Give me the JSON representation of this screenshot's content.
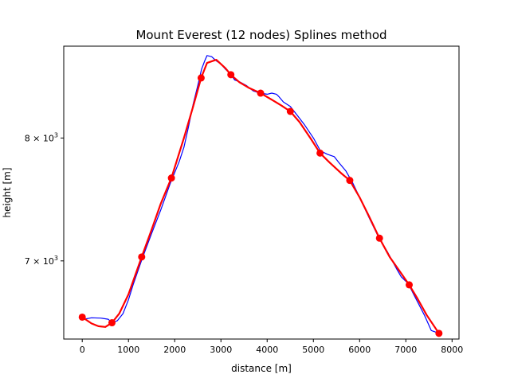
{
  "chart_data": {
    "type": "line",
    "title": "Mount Everest (12 nodes) Splines method",
    "xlabel": "distance [m]",
    "ylabel": "height [m]",
    "yscale": "log",
    "xlim": [
      -400,
      8150
    ],
    "ylim": [
      6430,
      8840
    ],
    "grid": false,
    "legend": "none",
    "x_ticks": [
      {
        "value": 0,
        "label": "0"
      },
      {
        "value": 1000,
        "label": "1000"
      },
      {
        "value": 2000,
        "label": "2000"
      },
      {
        "value": 3000,
        "label": "3000"
      },
      {
        "value": 4000,
        "label": "4000"
      },
      {
        "value": 5000,
        "label": "5000"
      },
      {
        "value": 6000,
        "label": "6000"
      },
      {
        "value": 7000,
        "label": "7000"
      },
      {
        "value": 8000,
        "label": "8000"
      }
    ],
    "y_ticks": [
      {
        "value": 7000,
        "base": "7 × 10",
        "exp": "3"
      },
      {
        "value": 8000,
        "base": "8 × 10",
        "exp": "3"
      }
    ],
    "series": [
      {
        "color": "#0000ff",
        "style": "thin line",
        "x": [
          0,
          200,
          400,
          560,
          650,
          760,
          880,
          1000,
          1100,
          1300,
          1500,
          1700,
          1900,
          2100,
          2200,
          2300,
          2400,
          2500,
          2580,
          2650,
          2700,
          2800,
          2900,
          3000,
          3100,
          3200,
          3300,
          3400,
          3550,
          3700,
          3850,
          4000,
          4100,
          4200,
          4250,
          4350,
          4500,
          4650,
          4800,
          5000,
          5150,
          5300,
          5450,
          5550,
          5700,
          5850,
          6000,
          6200,
          6400,
          6600,
          6800,
          6900,
          7050,
          7200,
          7400,
          7550,
          7720
        ],
        "y": [
          6568,
          6580,
          6578,
          6570,
          6545,
          6560,
          6610,
          6710,
          6820,
          7020,
          7210,
          7400,
          7610,
          7800,
          7920,
          8100,
          8300,
          8470,
          8620,
          8700,
          8750,
          8740,
          8700,
          8670,
          8620,
          8580,
          8520,
          8505,
          8470,
          8420,
          8400,
          8390,
          8400,
          8390,
          8370,
          8320,
          8280,
          8200,
          8120,
          8000,
          7890,
          7860,
          7840,
          7790,
          7720,
          7620,
          7500,
          7340,
          7190,
          7070,
          6940,
          6880,
          6830,
          6730,
          6600,
          6490,
          6470
        ]
      },
      {
        "color": "#ff0000",
        "style": "thick spline with node markers",
        "x": [
          0,
          200,
          350,
          500,
          643,
          800,
          1000,
          1286,
          1500,
          1700,
          1929,
          2200,
          2400,
          2572,
          2700,
          2900,
          3100,
          3215,
          3400,
          3600,
          3858,
          4100,
          4300,
          4501,
          4700,
          4950,
          5144,
          5350,
          5600,
          5787,
          6000,
          6200,
          6430,
          6650,
          6850,
          7073,
          7250,
          7450,
          7716
        ],
        "y": [
          6585,
          6540,
          6520,
          6515,
          6545,
          6610,
          6750,
          7030,
          7240,
          7450,
          7660,
          8000,
          8280,
          8540,
          8680,
          8710,
          8630,
          8570,
          8500,
          8450,
          8400,
          8340,
          8290,
          8235,
          8140,
          7990,
          7870,
          7790,
          7700,
          7640,
          7500,
          7350,
          7175,
          7030,
          6930,
          6820,
          6720,
          6600,
          6470
        ],
        "nodes": {
          "x": [
            0,
            643,
            1286,
            1929,
            2572,
            3215,
            3858,
            4501,
            5144,
            5787,
            6430,
            7073,
            7716
          ],
          "y": [
            6585,
            6545,
            7030,
            7660,
            8540,
            8570,
            8400,
            8235,
            7870,
            7640,
            7175,
            6820,
            6470
          ]
        }
      }
    ]
  }
}
